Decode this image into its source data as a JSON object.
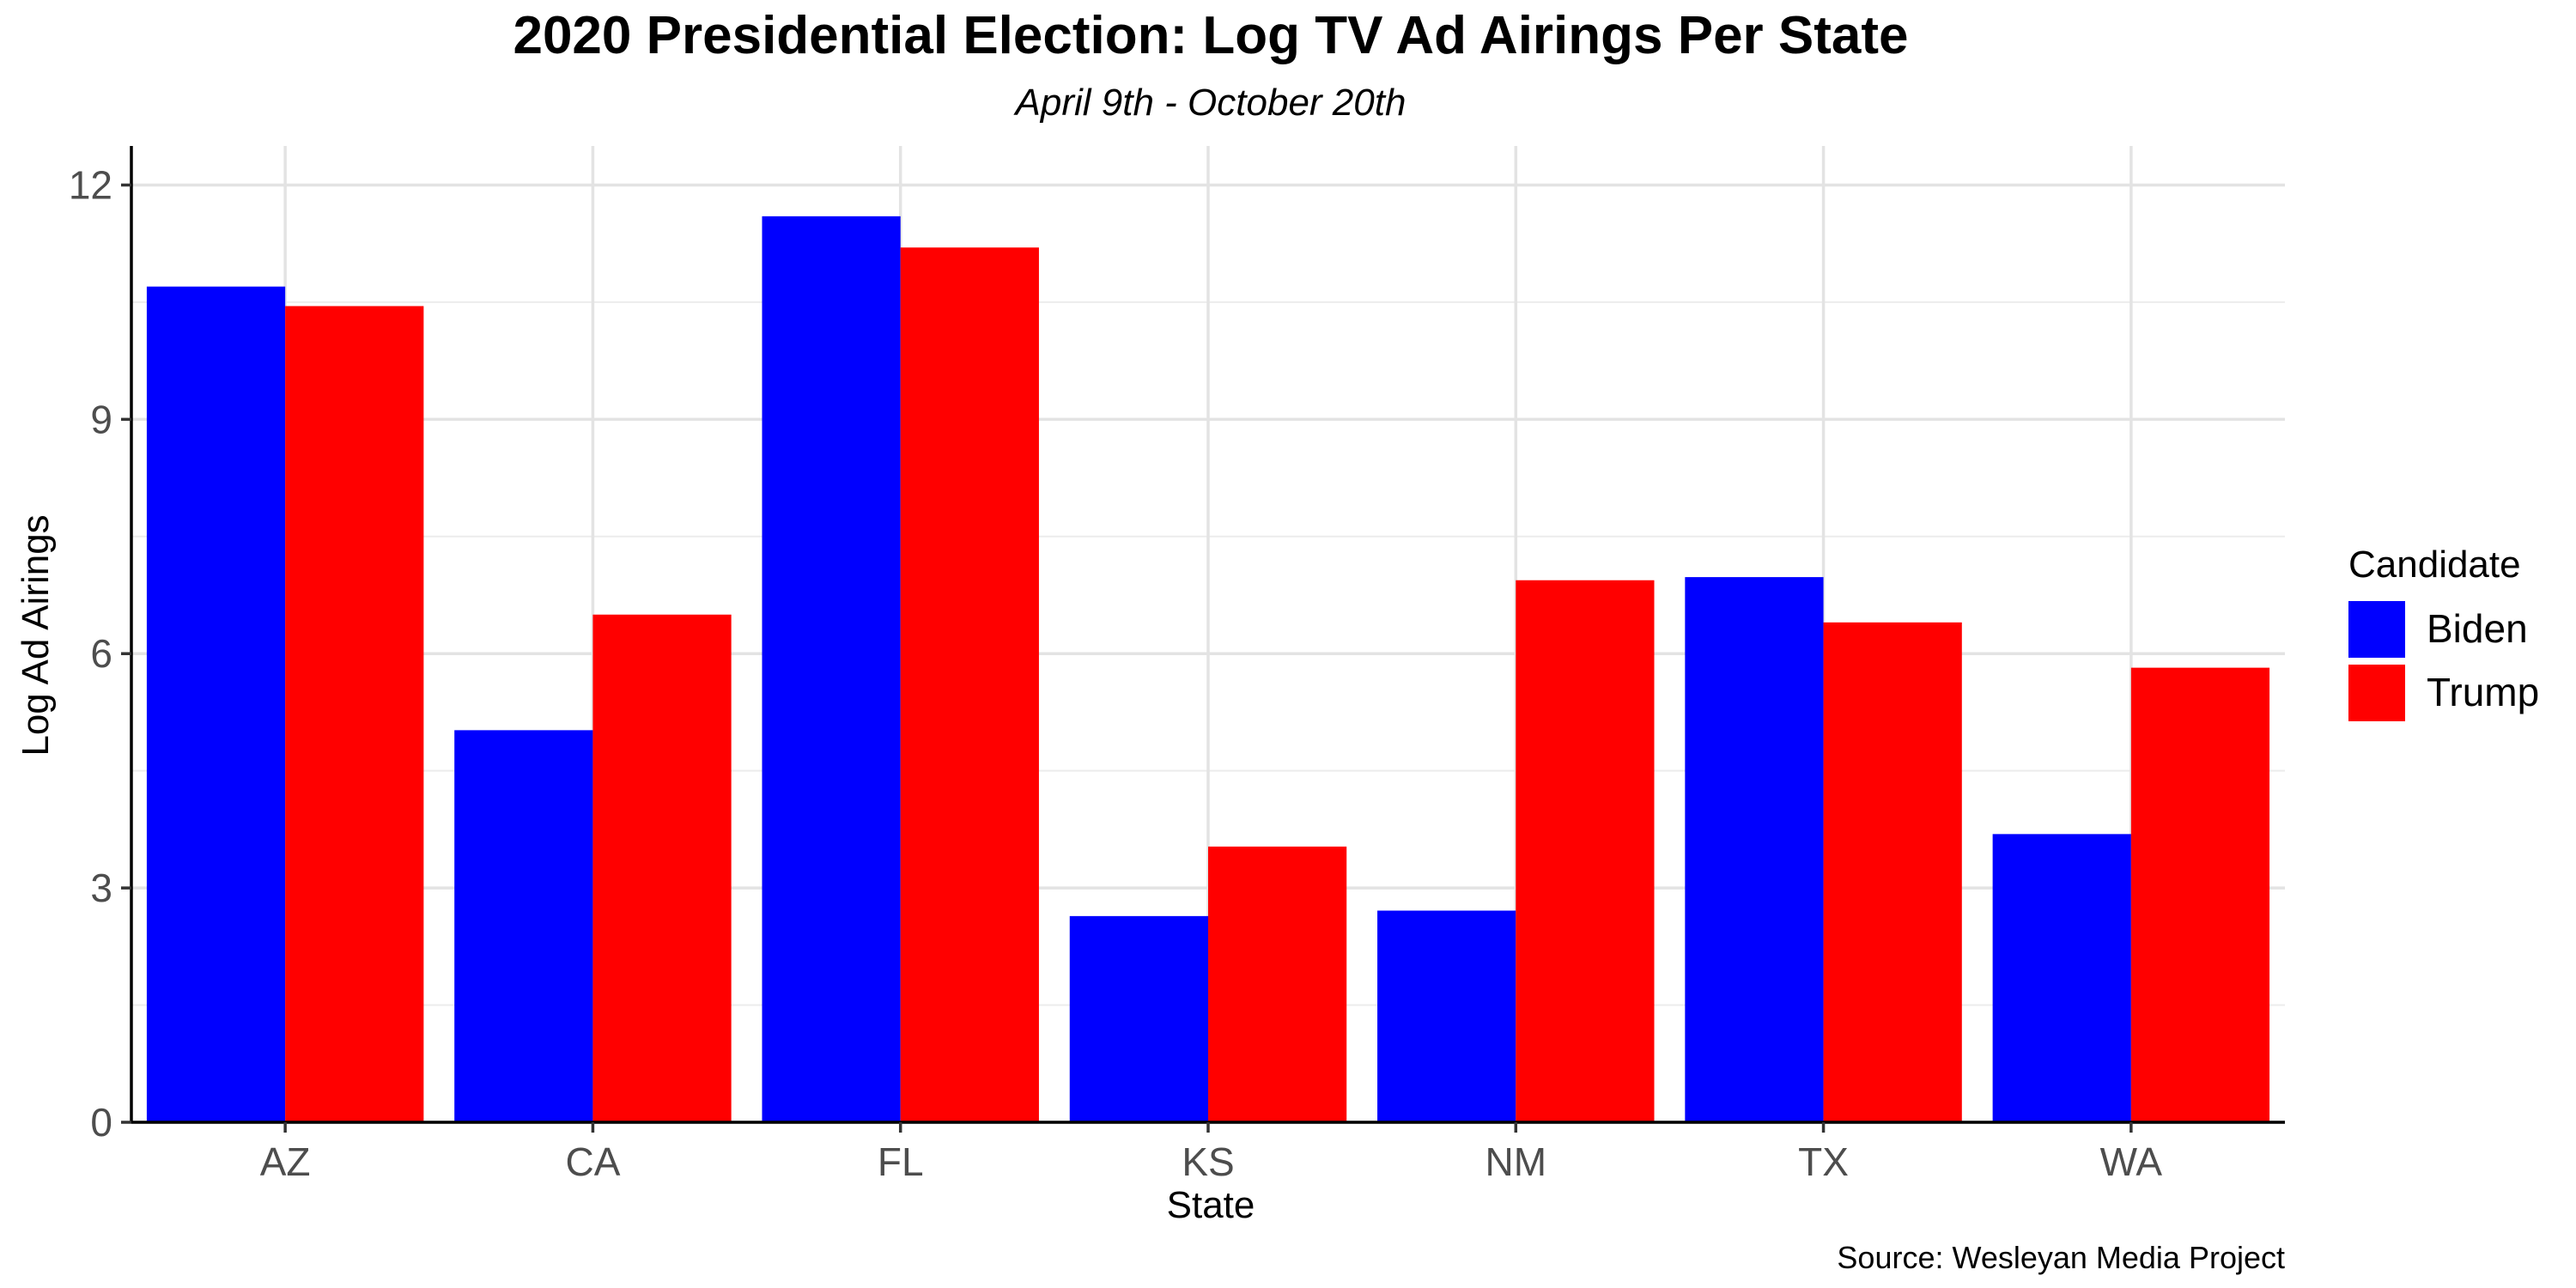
{
  "chart_data": {
    "type": "bar",
    "title": "2020 Presidential Election: Log TV Ad Airings Per State",
    "subtitle": "April 9th - October 20th",
    "xlabel": "State",
    "ylabel": "Log Ad Airings",
    "caption": "Source: Wesleyan Media Project",
    "categories": [
      "AZ",
      "CA",
      "FL",
      "KS",
      "NM",
      "TX",
      "WA"
    ],
    "series": [
      {
        "name": "Biden",
        "color": "#0000ff",
        "values": [
          10.7,
          5.02,
          11.6,
          2.64,
          2.71,
          6.98,
          3.69
        ]
      },
      {
        "name": "Trump",
        "color": "#ff0000",
        "values": [
          10.45,
          6.5,
          11.2,
          3.53,
          6.94,
          6.4,
          5.82
        ]
      }
    ],
    "legend_title": "Candidate",
    "legend_position": "right",
    "ylim": [
      0,
      12.5
    ],
    "yticks": [
      0,
      3,
      6,
      9,
      12
    ],
    "grid": true
  }
}
